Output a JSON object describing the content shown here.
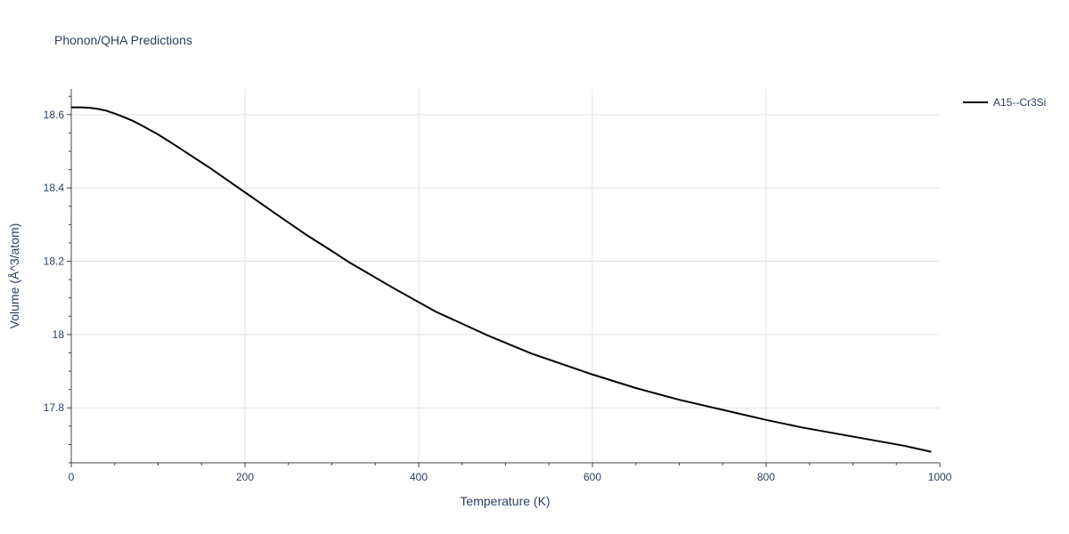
{
  "chart_data": {
    "type": "line",
    "title": "Phonon/QHA Predictions",
    "xlabel": "Temperature (K)",
    "ylabel": "Volume (Å^3/atom)",
    "xlim": [
      0,
      1000
    ],
    "ylim": [
      17.65,
      18.67
    ],
    "xticks": [
      0,
      200,
      400,
      600,
      800,
      1000
    ],
    "xtick_labels": [
      "0",
      "200",
      "400",
      "600",
      "800",
      "1000"
    ],
    "yticks": [
      17.8,
      18.0,
      18.2,
      18.4,
      18.6
    ],
    "ytick_labels": [
      "17.8",
      "18",
      "18.2",
      "18.4",
      "18.6"
    ],
    "grid": true,
    "legend_position": "top-right",
    "series": [
      {
        "name": "A15--Cr3Si",
        "color": "#000000",
        "x": [
          0,
          10,
          20,
          30,
          40,
          50,
          60,
          70,
          80,
          90,
          100,
          110,
          120,
          140,
          160,
          180,
          200,
          220,
          240,
          270,
          300,
          320,
          370,
          420,
          480,
          530,
          600,
          650,
          700,
          760,
          800,
          840,
          880,
          920,
          960,
          990
        ],
        "y": [
          18.62,
          18.62,
          18.619,
          18.616,
          18.611,
          18.603,
          18.594,
          18.584,
          18.572,
          18.559,
          18.546,
          18.531,
          18.516,
          18.485,
          18.454,
          18.421,
          18.388,
          18.355,
          18.322,
          18.273,
          18.228,
          18.197,
          18.128,
          18.062,
          17.997,
          17.948,
          17.891,
          17.854,
          17.822,
          17.789,
          17.767,
          17.747,
          17.73,
          17.713,
          17.696,
          17.68
        ]
      }
    ]
  }
}
